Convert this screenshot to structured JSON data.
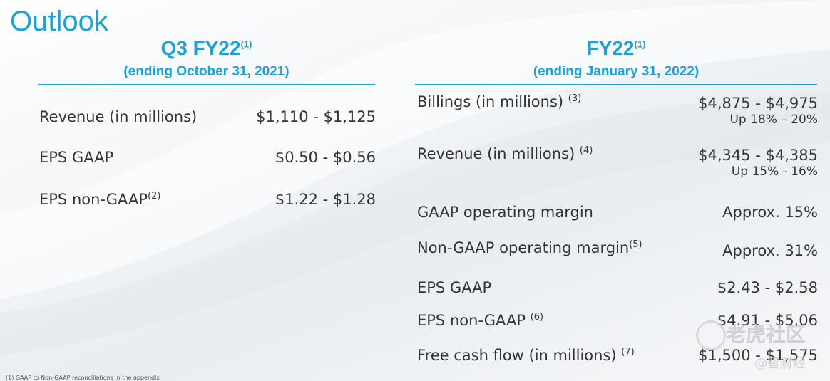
{
  "title": "Outlook",
  "q3": {
    "heading": "Q3 FY22",
    "heading_note": "(1)",
    "subheading": "(ending October 31, 2021)",
    "rows": [
      {
        "label": "Revenue (in millions)",
        "note": "",
        "value": "$1,110 - $1,125"
      },
      {
        "label": "EPS GAAP",
        "note": "",
        "value": "$0.50 - $0.56"
      },
      {
        "label": "EPS non-GAAP",
        "note": "(2)",
        "value": "$1.22 - $1.28"
      }
    ]
  },
  "fy22": {
    "heading": "FY22",
    "heading_note": "(1)",
    "subheading": "(ending January 31, 2022)",
    "rows": [
      {
        "label": "Billings (in millions) ",
        "note": "(3)",
        "value": "$4,875 - $4,975",
        "sub": "Up 18% – 20%"
      },
      {
        "label": "Revenue (in millions) ",
        "note": "(4)",
        "value": "$4,345 - $4,385",
        "sub": "Up 15% - 16%"
      },
      {
        "label": "GAAP operating margin",
        "note": "",
        "value": "Approx. 15%"
      },
      {
        "label": "Non-GAAP operating margin",
        "note": "(5)",
        "value": "Approx. 31%"
      },
      {
        "label": "EPS GAAP",
        "note": "",
        "value": "$2.43 - $2.58"
      },
      {
        "label": "EPS non-GAAP ",
        "note": "(6)",
        "value": "$4.91 - $5.06"
      },
      {
        "label": "Free cash flow (in millions) ",
        "note": "(7)",
        "value": "$1,500 - $1,575"
      }
    ]
  },
  "footnote": "(1)     GAAP to Non-GAAP reconciliations in the appendix",
  "watermark": {
    "main": "老虎社区",
    "sub": "@智财经"
  },
  "colors": {
    "accent": "#1da0d7",
    "text": "#333333"
  }
}
